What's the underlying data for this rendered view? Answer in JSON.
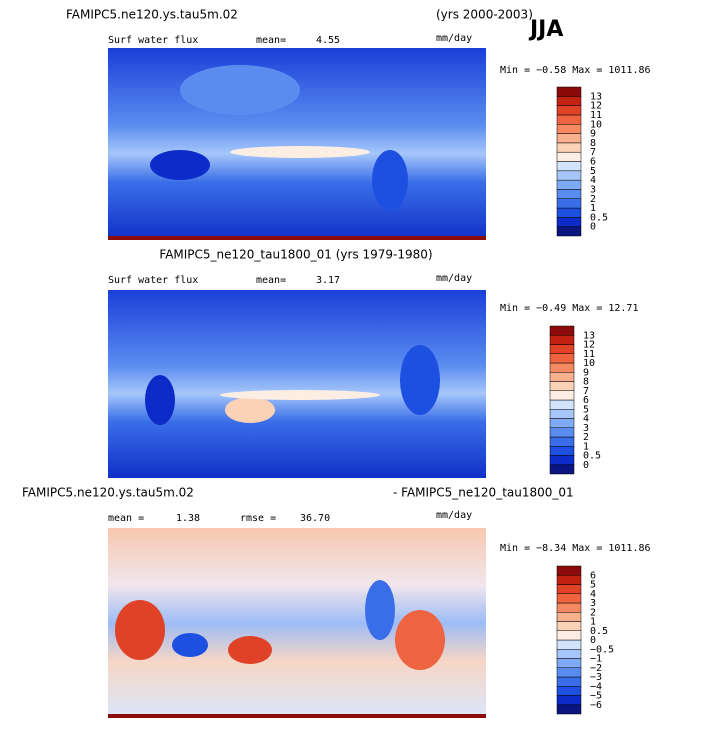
{
  "title": "JJA",
  "colorbar_colors": [
    "#0b1580",
    "#0c2bc8",
    "#1d4fe0",
    "#3a6ee8",
    "#5a8cf0",
    "#7faaf5",
    "#a6c6fa",
    "#d2e3fc",
    "#fdeee4",
    "#fcd2b6",
    "#f9b08c",
    "#f58a62",
    "#ef6440",
    "#df4226",
    "#c32213",
    "#8b0a0a"
  ],
  "panels": [
    {
      "headings": [
        "FAMIPC5.ne120.ys.tau5m.02",
        "(yrs 2000-2003)"
      ],
      "stats": [
        "Surf water flux",
        "mean=",
        "4.55",
        "mm/day"
      ],
      "minmax": "Min =  −0.58 Max =  1011.86",
      "colorbar_labels": [
        "0",
        "0.5",
        "1",
        "2",
        "3",
        "4",
        "5",
        "6",
        "7",
        "8",
        "9",
        "10",
        "11",
        "12",
        "13"
      ]
    },
    {
      "headings": [
        "FAMIPC5_ne120_tau1800_01 (yrs 1979-1980)"
      ],
      "stats": [
        "Surf water flux",
        "mean=",
        "3.17",
        "mm/day"
      ],
      "minmax": "Min =  −0.49 Max =  12.71",
      "colorbar_labels": [
        "0",
        "0.5",
        "1",
        "2",
        "3",
        "4",
        "5",
        "6",
        "7",
        "8",
        "9",
        "10",
        "11",
        "12",
        "13"
      ]
    },
    {
      "headings": [
        "FAMIPC5.ne120.ys.tau5m.02",
        "- FAMIPC5_ne120_tau1800_01"
      ],
      "stats": [
        "mean =",
        "1.38",
        "rmse =",
        "36.70",
        "mm/day"
      ],
      "minmax": "Min =  −8.34 Max =  1011.86",
      "colorbar_labels": [
        "−6",
        "−5",
        "−4",
        "−3",
        "−2",
        "−1",
        "−0.5",
        "0",
        "0.5",
        "1",
        "2",
        "3",
        "4",
        "5",
        "6"
      ]
    }
  ]
}
